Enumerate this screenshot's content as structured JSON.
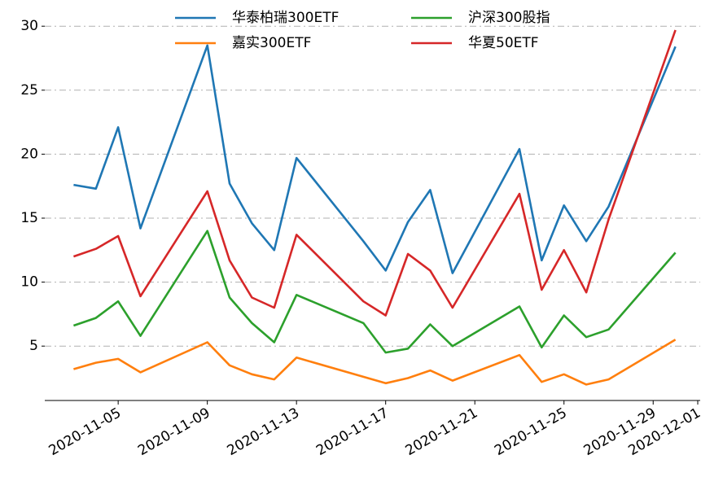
{
  "chart_data": {
    "type": "line",
    "x": [
      "2020-11-03",
      "2020-11-04",
      "2020-11-05",
      "2020-11-06",
      "2020-11-09",
      "2020-11-10",
      "2020-11-11",
      "2020-11-12",
      "2020-11-13",
      "2020-11-16",
      "2020-11-17",
      "2020-11-18",
      "2020-11-19",
      "2020-11-20",
      "2020-11-23",
      "2020-11-24",
      "2020-11-25",
      "2020-11-26",
      "2020-11-27",
      "2020-11-30"
    ],
    "series": [
      {
        "name": "华泰柏瑞300ETF",
        "color": "#1f77b4",
        "values": [
          17.6,
          17.3,
          22.1,
          14.2,
          28.5,
          17.7,
          14.6,
          12.5,
          19.7,
          13.2,
          10.9,
          14.7,
          17.2,
          10.7,
          20.4,
          11.7,
          16.0,
          13.2,
          15.9,
          28.4
        ]
      },
      {
        "name": "嘉实300ETF",
        "color": "#ff7f0e",
        "values": [
          3.2,
          3.7,
          4.0,
          2.95,
          5.3,
          3.5,
          2.8,
          2.4,
          4.1,
          2.6,
          2.1,
          2.5,
          3.1,
          2.3,
          4.3,
          2.2,
          2.8,
          2.0,
          2.4,
          5.5
        ]
      },
      {
        "name": "沪深300股指",
        "color": "#2ca02c",
        "values": [
          6.6,
          7.2,
          8.5,
          5.8,
          14.0,
          8.8,
          6.8,
          5.3,
          9.0,
          6.8,
          4.5,
          4.8,
          6.7,
          5.0,
          8.1,
          4.9,
          7.4,
          5.7,
          6.3,
          12.3
        ]
      },
      {
        "name": "华夏50ETF",
        "color": "#d62728",
        "values": [
          12.0,
          12.6,
          13.6,
          8.9,
          17.1,
          11.7,
          8.8,
          8.0,
          13.7,
          8.5,
          7.4,
          12.2,
          10.9,
          8.0,
          16.9,
          9.4,
          12.5,
          9.2,
          14.9,
          29.7
        ]
      }
    ],
    "xlim": [
      "2020-11-02",
      "2020-12-01"
    ],
    "xticks": [
      "2020-11-05",
      "2020-11-09",
      "2020-11-13",
      "2020-11-17",
      "2020-11-21",
      "2020-11-25",
      "2020-11-29",
      "2020-12-01"
    ],
    "ylim": [
      0.75,
      30.5
    ],
    "yticks": [
      5,
      10,
      15,
      20,
      25,
      30
    ],
    "grid": true,
    "legend": "upper center"
  }
}
